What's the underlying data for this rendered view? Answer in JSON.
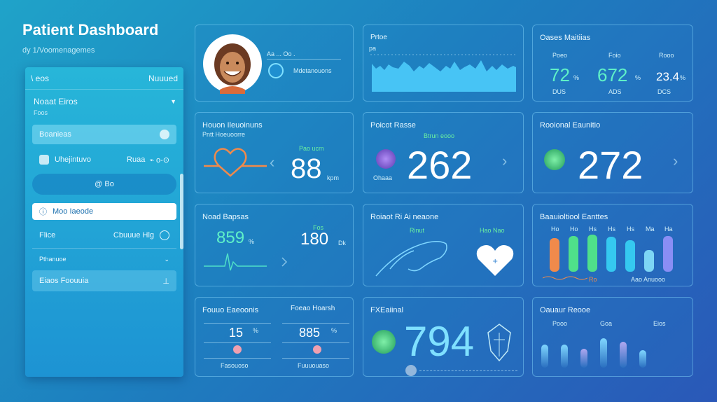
{
  "app": {
    "title": "Patient Dashboard",
    "subtitle": "dy 1/Voomenagemes"
  },
  "sidebar": {
    "header_left": "\\ eos",
    "header_right": "Nuuued",
    "section_title": "Noaat Eiros",
    "section_meta": "Foos",
    "items": [
      {
        "label": "Boanieas"
      },
      {
        "label": "Uhejintuvo",
        "value": "Ruaa"
      },
      {
        "label": "@ Bo"
      },
      {
        "label": "Moo Iaeode"
      },
      {
        "label": "Flice",
        "value": "Cbuuue Hlg"
      },
      {
        "label": "Pthanuoe"
      },
      {
        "label": "Eiaos Foouuia"
      }
    ]
  },
  "patient_card": {
    "name_line": "Aa ... Oo .",
    "detail_line": "Mdetanouons"
  },
  "pulse_card": {
    "title": "Prtoe",
    "axis_label": "pa"
  },
  "vitals_card": {
    "title": "Oases Maitiias",
    "cols": [
      {
        "label": "Poeo",
        "value": "72",
        "suffix": "%",
        "unit": "DUS"
      },
      {
        "label": "Foio",
        "value": "672",
        "suffix": "%",
        "unit": "ADS"
      },
      {
        "label": "Rooo",
        "value": "23.4",
        "suffix": "%",
        "unit": "DCS"
      }
    ],
    "accent": "#5ff0c8"
  },
  "heart_card": {
    "title": "Houon Ileuoinuns",
    "subtitle": "Pntt Hoeuoorre",
    "badge": "Pao ucm",
    "value": "88",
    "unit": "kpm",
    "icon": "heart-outline-icon",
    "heart_color": "#f08a4b"
  },
  "rate_card": {
    "title": "Poicot Rasse",
    "badge": "Btrun eooo",
    "value": "262",
    "icon_label": "Ohaaa"
  },
  "resp_card": {
    "title": "Rooional Eaunitio",
    "value": "272"
  },
  "oxygen_card": {
    "title": "Noad Bapsas",
    "left_value": "859",
    "left_unit": "%",
    "right_label": "Fos",
    "right_value": "180",
    "right_unit": "Dk"
  },
  "activity_card": {
    "title": "Roiaot Ri Ai neaone",
    "left_label": "Rinut",
    "right_label": "Hao Nao"
  },
  "levels_card": {
    "title": "Baauioltiool Eanttes",
    "bars": [
      {
        "label": "Ho",
        "level": 0.78,
        "color": "#f08a4b"
      },
      {
        "label": "Ho",
        "level": 0.82,
        "color": "#4fe08a"
      },
      {
        "label": "Hs",
        "level": 0.86,
        "color": "#4fe08a"
      },
      {
        "label": "Hs",
        "level": 0.8,
        "color": "#35c9f0"
      },
      {
        "label": "Hs",
        "level": 0.72,
        "color": "#35c9f0"
      },
      {
        "label": "Ma",
        "level": 0.5,
        "color": "#7dd6f5"
      },
      {
        "label": "Ha",
        "level": 0.82,
        "color": "#8a8ef5"
      }
    ],
    "footer_left": "Ro",
    "footer_right": "Aao Anuooo"
  },
  "balance_card": {
    "left_title": "Fouuo Eaeoonis",
    "left_value": "15",
    "left_unit": "%",
    "left_foot": "Fasouoso",
    "right_title": "Foeao Hoarsh",
    "right_value": "885",
    "right_unit": "%",
    "right_foot": "Fuuuouaso"
  },
  "score_card": {
    "title": "FXEaiinal",
    "value": "794"
  },
  "summary_card": {
    "title": "Oauaur Reooe",
    "labels": [
      "Pooo",
      "Goa",
      "Eios"
    ],
    "bars": [
      0.55,
      0.55,
      0.45,
      0.7,
      0.62,
      0.42
    ]
  }
}
